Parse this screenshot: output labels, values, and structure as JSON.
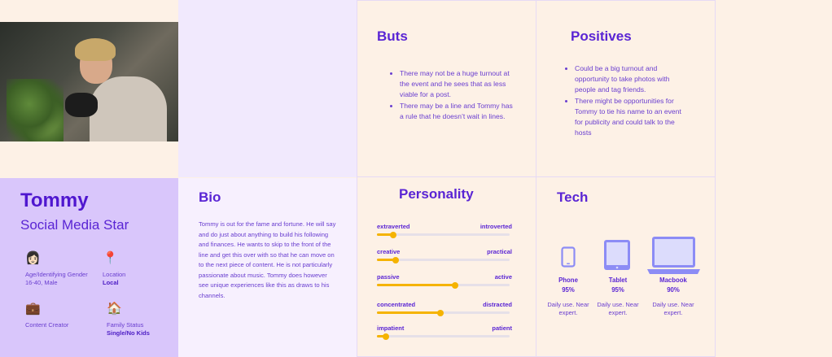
{
  "profile": {
    "name": "Tommy",
    "role": "Social Media Star",
    "details": [
      {
        "icon": "person-icon",
        "glyph": "👩🏻",
        "label": "Age/Identifying Gender",
        "value": "16-40, Male"
      },
      {
        "icon": "location-pin-icon",
        "glyph": "📍",
        "label": "Location",
        "value": "Local"
      },
      {
        "icon": "briefcase-icon",
        "glyph": "💼",
        "label": "Content Creator",
        "value": ""
      },
      {
        "icon": "house-icon",
        "glyph": "🏠",
        "label": "Family Status",
        "value": "Single/No Kids"
      }
    ]
  },
  "bio": {
    "title": "Bio",
    "text": "Tommy is out for the fame and fortune. He will say and do just about anything to build his following and finances. He wants to skip to the front of the line and get this over with so that he can move on to the next piece of content. He is not particularly passionate about music. Tommy does however see unique experiences like this as draws to his channels."
  },
  "buts": {
    "title": "Buts",
    "items": [
      "There may not be a huge turnout at the event and he sees that as less viable for a post.",
      "There may be a line and Tommy has a rule that he doesn’t wait in lines."
    ]
  },
  "positives": {
    "title": "Positives",
    "items": [
      "Could be a big turnout and opportunity to take photos with people and tag friends.",
      "There might be opportunities for Tommy to tie his name to an event for publicity and could talk to the hosts"
    ]
  },
  "personality": {
    "title": "Personality",
    "traits": [
      {
        "left": "extraverted",
        "right": "introverted",
        "value": 0.12
      },
      {
        "left": "creative",
        "right": "practical",
        "value": 0.14
      },
      {
        "left": "passive",
        "right": "active",
        "value": 0.59
      },
      {
        "left": "concentrated",
        "right": "distracted",
        "value": 0.48
      },
      {
        "left": "impatient",
        "right": "patient",
        "value": 0.07
      }
    ]
  },
  "tech": {
    "title": "Tech",
    "devices": [
      {
        "icon": "phone-icon",
        "name": "Phone",
        "percent": "95%",
        "note": "Daily use. Near expert."
      },
      {
        "icon": "tablet-icon",
        "name": "Tablet",
        "percent": "95%",
        "note": "Daily use. Near expert."
      },
      {
        "icon": "laptop-icon",
        "name": "Macbook",
        "percent": "90%",
        "note": "Daily use. Near expert."
      }
    ],
    "icon_color": "#8c8cf5"
  },
  "colors": {
    "accent": "#5a25d4",
    "slider": "#f5b300",
    "profile_bg": "#d9c6fb"
  }
}
